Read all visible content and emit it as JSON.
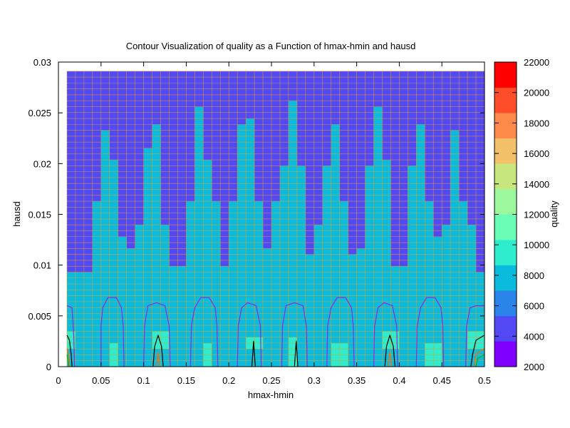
{
  "chart_data": {
    "type": "heatmap",
    "title": "Contour Visualization of quality as a Function of hmax-hmin and hausd",
    "xlabel": "hmax-hmin",
    "ylabel": "hausd",
    "colorbar_label": "quality",
    "xlim": [
      0,
      0.5
    ],
    "ylim": [
      0,
      0.03
    ],
    "x_grid_range": [
      0.01,
      0.5
    ],
    "y_grid_range": [
      0,
      0.0291
    ],
    "x_cells": 49,
    "y_cells": 50,
    "x_ticks": [
      "0",
      "0.05",
      "0.1",
      "0.15",
      "0.2",
      "0.25",
      "0.3",
      "0.35",
      "0.4",
      "0.45",
      "0.5"
    ],
    "y_ticks": [
      "0",
      "0.005",
      "0.01",
      "0.015",
      "0.02",
      "0.025",
      "0.03"
    ],
    "colorbar_ticks": [
      "2000",
      "4000",
      "6000",
      "8000",
      "10000",
      "12000",
      "14000",
      "16000",
      "18000",
      "20000",
      "22000"
    ],
    "color_range": [
      2000,
      22000
    ],
    "palette": [
      "#7f00ff",
      "#5248f4",
      "#2a84ea",
      "#0bbbdd",
      "#2eedcf",
      "#6afdb6",
      "#9bf89c",
      "#c8e67e",
      "#f3c06a",
      "#ff8a49",
      "#ff4d2a",
      "#ff0000"
    ],
    "grid_line_color": "#e0a020",
    "contour_colors": [
      "#8a2be2",
      "#000000",
      "#ff6a00",
      "#00b000"
    ],
    "column_boundary_y": [
      0.0092,
      0.0092,
      0.0092,
      0.0162,
      0.0233,
      0.0206,
      0.0126,
      0.0118,
      0.014,
      0.0218,
      0.024,
      0.014,
      0.0098,
      0.0098,
      0.0162,
      0.0258,
      0.0206,
      0.0162,
      0.0098,
      0.0162,
      0.024,
      0.0247,
      0.0162,
      0.0118,
      0.0162,
      0.0199,
      0.0264,
      0.0199,
      0.0112,
      0.014,
      0.0199,
      0.024,
      0.0162,
      0.0112,
      0.0118,
      0.0199,
      0.0258,
      0.0206,
      0.0098,
      0.0098,
      0.0199,
      0.024,
      0.0162,
      0.0126,
      0.014,
      0.0233,
      0.0162,
      0.014,
      0.0092
    ],
    "high_value_patches": [
      {
        "x0": 0.013,
        "x1": 0.022,
        "y0": 0.0015,
        "y1": 0.0035
      },
      {
        "x0": 0.06,
        "x1": 0.07,
        "y0": 0.0,
        "y1": 0.0022
      },
      {
        "x0": 0.11,
        "x1": 0.125,
        "y0": 0.0015,
        "y1": 0.0035
      },
      {
        "x0": 0.17,
        "x1": 0.18,
        "y0": 0.0,
        "y1": 0.0022
      },
      {
        "x0": 0.222,
        "x1": 0.237,
        "y0": 0.0015,
        "y1": 0.003
      },
      {
        "x0": 0.272,
        "x1": 0.285,
        "y0": 0.0,
        "y1": 0.003
      },
      {
        "x0": 0.325,
        "x1": 0.335,
        "y0": 0.0,
        "y1": 0.0022
      },
      {
        "x0": 0.38,
        "x1": 0.395,
        "y0": 0.0015,
        "y1": 0.0035
      },
      {
        "x0": 0.435,
        "x1": 0.445,
        "y0": 0.0,
        "y1": 0.0022
      },
      {
        "x0": 0.485,
        "x1": 0.495,
        "y0": 0.0015,
        "y1": 0.0035
      }
    ],
    "contour_lines": [
      {
        "color_index": 0,
        "points": [
          [
            0.01,
            0.006
          ],
          [
            0.016,
            0.0058
          ],
          [
            0.018,
            0.003
          ],
          [
            0.019,
            0.0
          ]
        ]
      },
      {
        "color_index": 0,
        "points": [
          [
            0.05,
            0.0
          ],
          [
            0.05,
            0.004
          ],
          [
            0.052,
            0.0058
          ],
          [
            0.058,
            0.0068
          ],
          [
            0.068,
            0.0068
          ],
          [
            0.074,
            0.0058
          ],
          [
            0.076,
            0.004
          ],
          [
            0.077,
            0.0
          ]
        ]
      },
      {
        "color_index": 0,
        "points": [
          [
            0.1,
            0.0
          ],
          [
            0.101,
            0.004
          ],
          [
            0.105,
            0.006
          ],
          [
            0.115,
            0.0063
          ],
          [
            0.125,
            0.006
          ],
          [
            0.13,
            0.004
          ],
          [
            0.131,
            0.0
          ]
        ]
      },
      {
        "color_index": 0,
        "points": [
          [
            0.155,
            0.0
          ],
          [
            0.156,
            0.004
          ],
          [
            0.16,
            0.0058
          ],
          [
            0.167,
            0.0068
          ],
          [
            0.177,
            0.0068
          ],
          [
            0.184,
            0.0058
          ],
          [
            0.186,
            0.004
          ],
          [
            0.187,
            0.0
          ]
        ]
      },
      {
        "color_index": 0,
        "points": [
          [
            0.21,
            0.0
          ],
          [
            0.211,
            0.004
          ],
          [
            0.215,
            0.0058
          ],
          [
            0.222,
            0.0063
          ],
          [
            0.232,
            0.006
          ],
          [
            0.237,
            0.004
          ],
          [
            0.238,
            0.0
          ]
        ]
      },
      {
        "color_index": 0,
        "points": [
          [
            0.262,
            0.0
          ],
          [
            0.263,
            0.004
          ],
          [
            0.267,
            0.006
          ],
          [
            0.277,
            0.0063
          ],
          [
            0.287,
            0.006
          ],
          [
            0.291,
            0.004
          ],
          [
            0.292,
            0.0
          ]
        ]
      },
      {
        "color_index": 0,
        "points": [
          [
            0.315,
            0.0
          ],
          [
            0.316,
            0.004
          ],
          [
            0.32,
            0.0058
          ],
          [
            0.327,
            0.0068
          ],
          [
            0.337,
            0.0068
          ],
          [
            0.344,
            0.0058
          ],
          [
            0.346,
            0.004
          ],
          [
            0.347,
            0.0
          ]
        ]
      },
      {
        "color_index": 0,
        "points": [
          [
            0.37,
            0.0
          ],
          [
            0.371,
            0.004
          ],
          [
            0.375,
            0.0058
          ],
          [
            0.382,
            0.0063
          ],
          [
            0.392,
            0.006
          ],
          [
            0.397,
            0.004
          ],
          [
            0.398,
            0.0
          ]
        ]
      },
      {
        "color_index": 0,
        "points": [
          [
            0.42,
            0.0
          ],
          [
            0.421,
            0.004
          ],
          [
            0.425,
            0.0058
          ],
          [
            0.432,
            0.0068
          ],
          [
            0.442,
            0.0068
          ],
          [
            0.449,
            0.0058
          ],
          [
            0.451,
            0.004
          ],
          [
            0.452,
            0.0
          ]
        ]
      },
      {
        "color_index": 0,
        "points": [
          [
            0.478,
            0.0
          ],
          [
            0.479,
            0.004
          ],
          [
            0.483,
            0.0058
          ],
          [
            0.49,
            0.006
          ],
          [
            0.5,
            0.006
          ]
        ]
      },
      {
        "color_index": 1,
        "points": [
          [
            0.01,
            0.0031
          ],
          [
            0.013,
            0.0026
          ],
          [
            0.015,
            0.0012
          ],
          [
            0.016,
            0.0
          ]
        ]
      },
      {
        "color_index": 1,
        "points": [
          [
            0.111,
            0.0
          ],
          [
            0.113,
            0.002
          ],
          [
            0.117,
            0.0031
          ],
          [
            0.121,
            0.002
          ],
          [
            0.123,
            0.0
          ]
        ]
      },
      {
        "color_index": 1,
        "points": [
          [
            0.227,
            0.0
          ],
          [
            0.229,
            0.0025
          ],
          [
            0.231,
            0.0
          ]
        ]
      },
      {
        "color_index": 1,
        "points": [
          [
            0.277,
            0.0
          ],
          [
            0.279,
            0.0025
          ],
          [
            0.281,
            0.0
          ]
        ]
      },
      {
        "color_index": 1,
        "points": [
          [
            0.383,
            0.0
          ],
          [
            0.385,
            0.002
          ],
          [
            0.389,
            0.0031
          ],
          [
            0.393,
            0.002
          ],
          [
            0.395,
            0.0
          ]
        ]
      },
      {
        "color_index": 1,
        "points": [
          [
            0.484,
            0.0
          ],
          [
            0.486,
            0.0012
          ],
          [
            0.49,
            0.0026
          ],
          [
            0.5,
            0.0031
          ]
        ]
      },
      {
        "color_index": 2,
        "points": [
          [
            0.01,
            0.0018
          ],
          [
            0.012,
            0.0012
          ],
          [
            0.013,
            0.0
          ]
        ]
      },
      {
        "color_index": 2,
        "points": [
          [
            0.115,
            0.0
          ],
          [
            0.117,
            0.0014
          ],
          [
            0.119,
            0.0
          ]
        ]
      },
      {
        "color_index": 2,
        "points": [
          [
            0.387,
            0.0
          ],
          [
            0.389,
            0.0014
          ],
          [
            0.391,
            0.0
          ]
        ]
      },
      {
        "color_index": 2,
        "points": [
          [
            0.488,
            0.0
          ],
          [
            0.49,
            0.0012
          ],
          [
            0.5,
            0.0018
          ]
        ]
      },
      {
        "color_index": 3,
        "points": [
          [
            0.01,
            0.0012
          ],
          [
            0.011,
            0.0008
          ],
          [
            0.012,
            0.0
          ]
        ]
      },
      {
        "color_index": 3,
        "points": [
          [
            0.49,
            0.0
          ],
          [
            0.492,
            0.0008
          ],
          [
            0.5,
            0.0012
          ]
        ]
      }
    ]
  }
}
